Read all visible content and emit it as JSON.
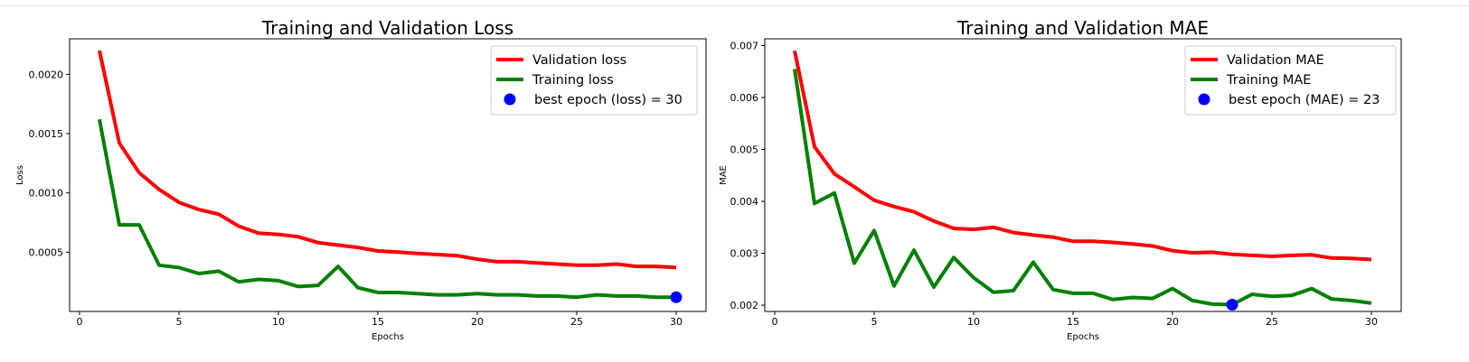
{
  "chart_data": [
    {
      "type": "line",
      "title": "Training and Validation Loss",
      "xlabel": "Epochs",
      "ylabel": "Loss",
      "xlim": [
        -0.5,
        31.5
      ],
      "ylim": [
        0.0,
        0.0023
      ],
      "xticks": [
        0,
        5,
        10,
        15,
        20,
        25,
        30
      ],
      "yticks": [
        0.0005,
        0.001,
        0.0015,
        0.002
      ],
      "ytick_labels": [
        "0.0005",
        "0.0010",
        "0.0015",
        "0.0020"
      ],
      "legend_position": "top-right",
      "x": [
        1,
        2,
        3,
        4,
        5,
        6,
        7,
        8,
        9,
        10,
        11,
        12,
        13,
        14,
        15,
        16,
        17,
        18,
        19,
        20,
        21,
        22,
        23,
        24,
        25,
        26,
        27,
        28,
        29,
        30
      ],
      "series": [
        {
          "name": "Validation loss",
          "color": "#ff0000",
          "values": [
            0.0022,
            0.00142,
            0.00117,
            0.00103,
            0.00092,
            0.00086,
            0.00082,
            0.00072,
            0.00066,
            0.00065,
            0.00063,
            0.00058,
            0.00056,
            0.00054,
            0.00051,
            0.0005,
            0.00049,
            0.00048,
            0.00047,
            0.00044,
            0.00042,
            0.00042,
            0.00041,
            0.0004,
            0.00039,
            0.00039,
            0.0004,
            0.00038,
            0.00038,
            0.00037
          ]
        },
        {
          "name": "Training loss",
          "color": "#008000",
          "values": [
            0.00162,
            0.00073,
            0.00073,
            0.00039,
            0.00037,
            0.00032,
            0.00034,
            0.00025,
            0.00027,
            0.00026,
            0.00021,
            0.00022,
            0.00038,
            0.0002,
            0.00016,
            0.00016,
            0.00015,
            0.00014,
            0.00014,
            0.00015,
            0.00014,
            0.00014,
            0.00013,
            0.00013,
            0.00012,
            0.00014,
            0.00013,
            0.00013,
            0.00012,
            0.00012
          ]
        }
      ],
      "best_point": {
        "label": "best epoch (loss) = 30",
        "x": 30,
        "y": 0.00012,
        "color": "#0000ff"
      }
    },
    {
      "type": "line",
      "title": "Training and Validation MAE",
      "xlabel": "Epochs",
      "ylabel": "MAE",
      "xlim": [
        -0.5,
        31.5
      ],
      "ylim": [
        0.00188,
        0.00713
      ],
      "xticks": [
        0,
        5,
        10,
        15,
        20,
        25,
        30
      ],
      "yticks": [
        0.002,
        0.003,
        0.004,
        0.005,
        0.006,
        0.007
      ],
      "ytick_labels": [
        "0.002",
        "0.003",
        "0.004",
        "0.005",
        "0.006",
        "0.007"
      ],
      "legend_position": "top-right",
      "x": [
        1,
        2,
        3,
        4,
        5,
        6,
        7,
        8,
        9,
        10,
        11,
        12,
        13,
        14,
        15,
        16,
        17,
        18,
        19,
        20,
        21,
        22,
        23,
        24,
        25,
        26,
        27,
        28,
        29,
        30
      ],
      "series": [
        {
          "name": "Validation MAE",
          "color": "#ff0000",
          "values": [
            0.0069,
            0.00505,
            0.00453,
            0.00428,
            0.00402,
            0.0039,
            0.0038,
            0.00362,
            0.00348,
            0.00346,
            0.0035,
            0.0034,
            0.00335,
            0.00331,
            0.00323,
            0.00323,
            0.00321,
            0.00318,
            0.00314,
            0.00305,
            0.00301,
            0.00302,
            0.00298,
            0.00296,
            0.00294,
            0.00296,
            0.00297,
            0.00291,
            0.0029,
            0.00288
          ]
        },
        {
          "name": "Training MAE",
          "color": "#008000",
          "values": [
            0.00655,
            0.00396,
            0.00416,
            0.00281,
            0.00344,
            0.00237,
            0.00306,
            0.00235,
            0.00292,
            0.00253,
            0.00225,
            0.00228,
            0.00283,
            0.0023,
            0.00223,
            0.00223,
            0.00211,
            0.00215,
            0.00213,
            0.00232,
            0.00209,
            0.00202,
            0.00201,
            0.00221,
            0.00217,
            0.00219,
            0.00232,
            0.00212,
            0.00209,
            0.00204
          ]
        }
      ],
      "best_point": {
        "label": "best epoch (MAE) = 23",
        "x": 23,
        "y": 0.00201,
        "color": "#0000ff"
      }
    }
  ]
}
